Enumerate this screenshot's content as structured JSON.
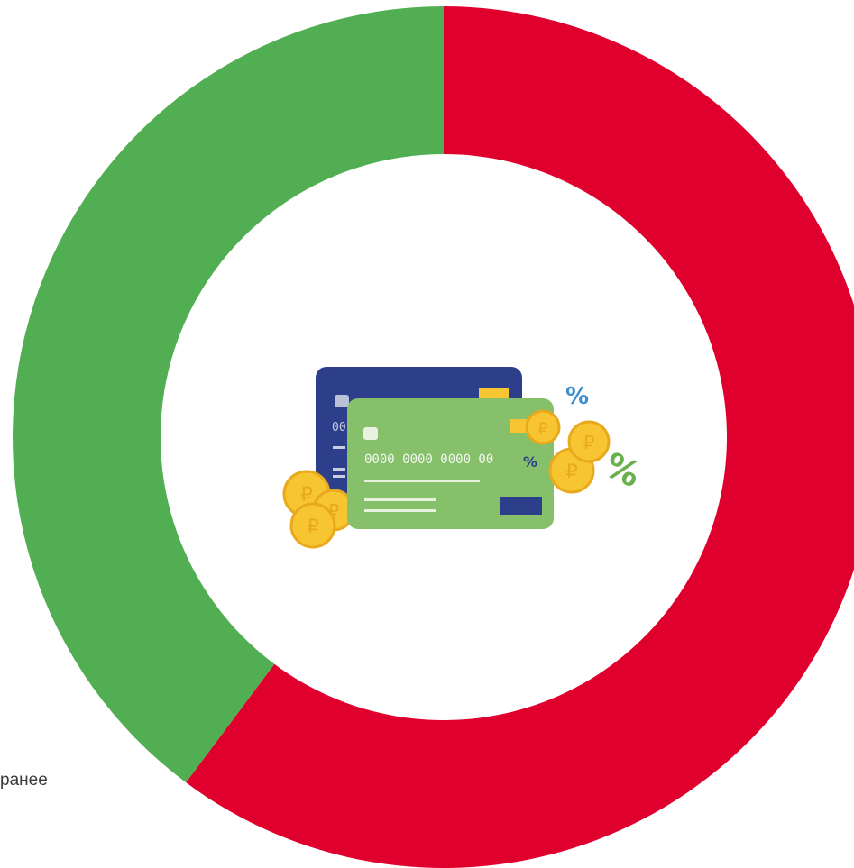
{
  "chart_data": {
    "type": "pie",
    "variant": "donut",
    "title": "",
    "slices": [
      {
        "label": "",
        "value": 60.2,
        "color": "#e0002d"
      },
      {
        "label": "",
        "value": 39.8,
        "color": "#52ae52"
      }
    ],
    "start": "12 o'clock",
    "direction": "clockwise",
    "center_image": "credit-cards-with-ruble-coins-and-percent-signs",
    "legend": {
      "visible_entry_text": "ранее",
      "placement": "bottom-left"
    }
  },
  "icons": {
    "card_back_color": "#2d3f8b",
    "card_front_color": "#86c06a",
    "coin_color": "#f7c531",
    "percent_blue": "#3d8fd0",
    "percent_green": "#6ab04c",
    "card_digits": "0000 0000 0000 00",
    "card_digits_back": "00",
    "percent_sign": "%",
    "ruble_sign": "₽"
  }
}
